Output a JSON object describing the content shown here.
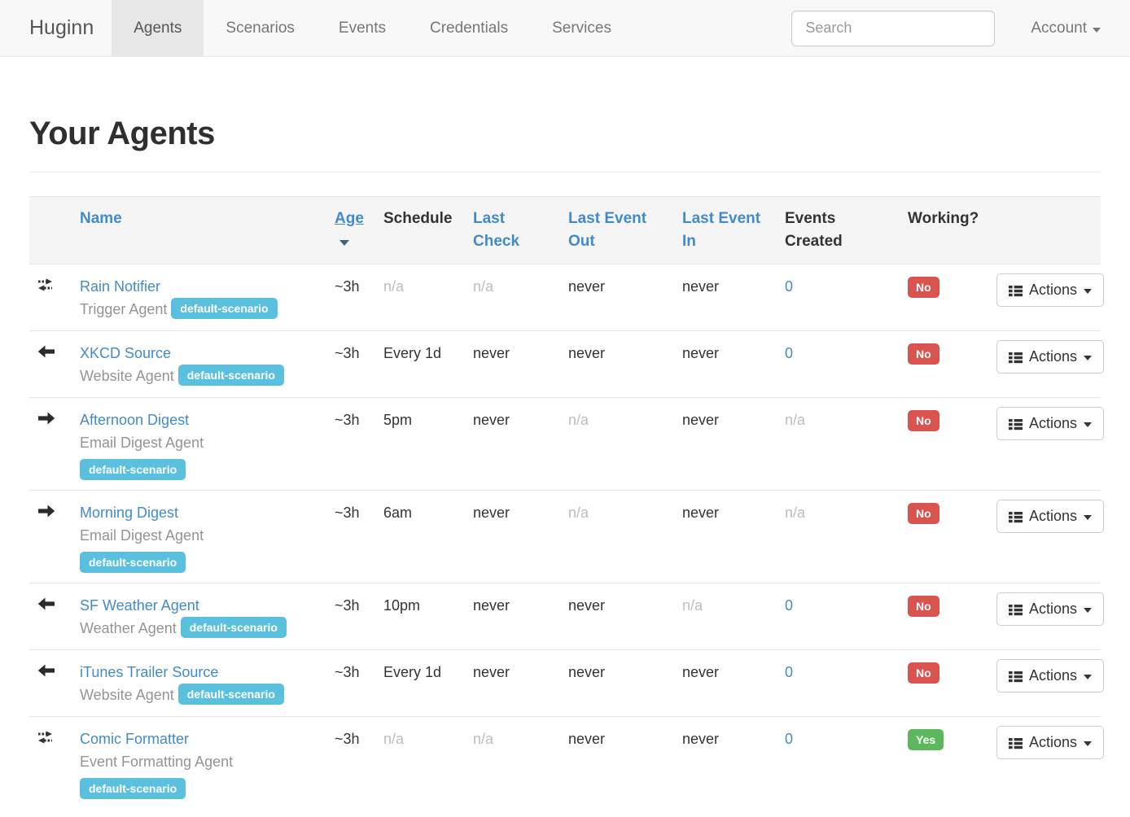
{
  "navbar": {
    "brand": "Huginn",
    "items": [
      {
        "label": "Agents",
        "active": true
      },
      {
        "label": "Scenarios",
        "active": false
      },
      {
        "label": "Events",
        "active": false
      },
      {
        "label": "Credentials",
        "active": false
      },
      {
        "label": "Services",
        "active": false
      }
    ],
    "search_placeholder": "Search",
    "account_label": "Account"
  },
  "page": {
    "title": "Your Agents"
  },
  "table": {
    "columns": [
      {
        "label": "Name",
        "link": true,
        "sorted": false
      },
      {
        "label": "Age",
        "link": true,
        "sorted": true,
        "sort_direction": "desc"
      },
      {
        "label": "Schedule",
        "link": false,
        "sorted": false
      },
      {
        "label": "Last Check",
        "link": true,
        "sorted": false
      },
      {
        "label": "Last Event Out",
        "link": true,
        "sorted": false
      },
      {
        "label": "Last Event In",
        "link": true,
        "sorted": false
      },
      {
        "label": "Events Created",
        "link": false,
        "sorted": false
      },
      {
        "label": "Working?",
        "link": false,
        "sorted": false
      }
    ],
    "actions_label": "Actions",
    "rows": [
      {
        "icon": "transfer",
        "name": "Rain Notifier",
        "type": "Trigger Agent",
        "badge": "default-scenario",
        "badge_new_line": false,
        "age": "~3h",
        "schedule": "n/a",
        "last_check": "n/a",
        "last_event_out": "never",
        "last_event_in": "never",
        "events_created": "0",
        "working": "No"
      },
      {
        "icon": "arrow-left",
        "name": "XKCD Source",
        "type": "Website Agent",
        "badge": "default-scenario",
        "badge_new_line": false,
        "age": "~3h",
        "schedule": "Every 1d",
        "last_check": "never",
        "last_event_out": "never",
        "last_event_in": "never",
        "events_created": "0",
        "working": "No"
      },
      {
        "icon": "arrow-right",
        "name": "Afternoon Digest",
        "type": "Email Digest Agent",
        "badge": "default-scenario",
        "badge_new_line": true,
        "age": "~3h",
        "schedule": "5pm",
        "last_check": "never",
        "last_event_out": "n/a",
        "last_event_in": "never",
        "events_created": "n/a",
        "working": "No"
      },
      {
        "icon": "arrow-right",
        "name": "Morning Digest",
        "type": "Email Digest Agent",
        "badge": "default-scenario",
        "badge_new_line": true,
        "age": "~3h",
        "schedule": "6am",
        "last_check": "never",
        "last_event_out": "n/a",
        "last_event_in": "never",
        "events_created": "n/a",
        "working": "No"
      },
      {
        "icon": "arrow-left",
        "name": "SF Weather Agent",
        "type": "Weather Agent",
        "badge": "default-scenario",
        "badge_new_line": false,
        "age": "~3h",
        "schedule": "10pm",
        "last_check": "never",
        "last_event_out": "never",
        "last_event_in": "n/a",
        "events_created": "0",
        "working": "No"
      },
      {
        "icon": "arrow-left",
        "name": "iTunes Trailer Source",
        "type": "Website Agent",
        "badge": "default-scenario",
        "badge_new_line": false,
        "age": "~3h",
        "schedule": "Every 1d",
        "last_check": "never",
        "last_event_out": "never",
        "last_event_in": "never",
        "events_created": "0",
        "working": "No"
      },
      {
        "icon": "transfer",
        "name": "Comic Formatter",
        "type": "Event Formatting Agent",
        "badge": "default-scenario",
        "badge_new_line": true,
        "age": "~3h",
        "schedule": "n/a",
        "last_check": "n/a",
        "last_event_out": "never",
        "last_event_in": "never",
        "events_created": "0",
        "working": "Yes"
      }
    ]
  },
  "colors": {
    "link_blue": "#428bca",
    "badge_blue": "#5bc0de",
    "working_no_red": "#d9534f",
    "working_yes_green": "#5cb85c",
    "navbar_bg": "#f8f8f8",
    "navbar_active_bg": "#e7e7e7",
    "table_header_bg": "#f5f5f5"
  }
}
